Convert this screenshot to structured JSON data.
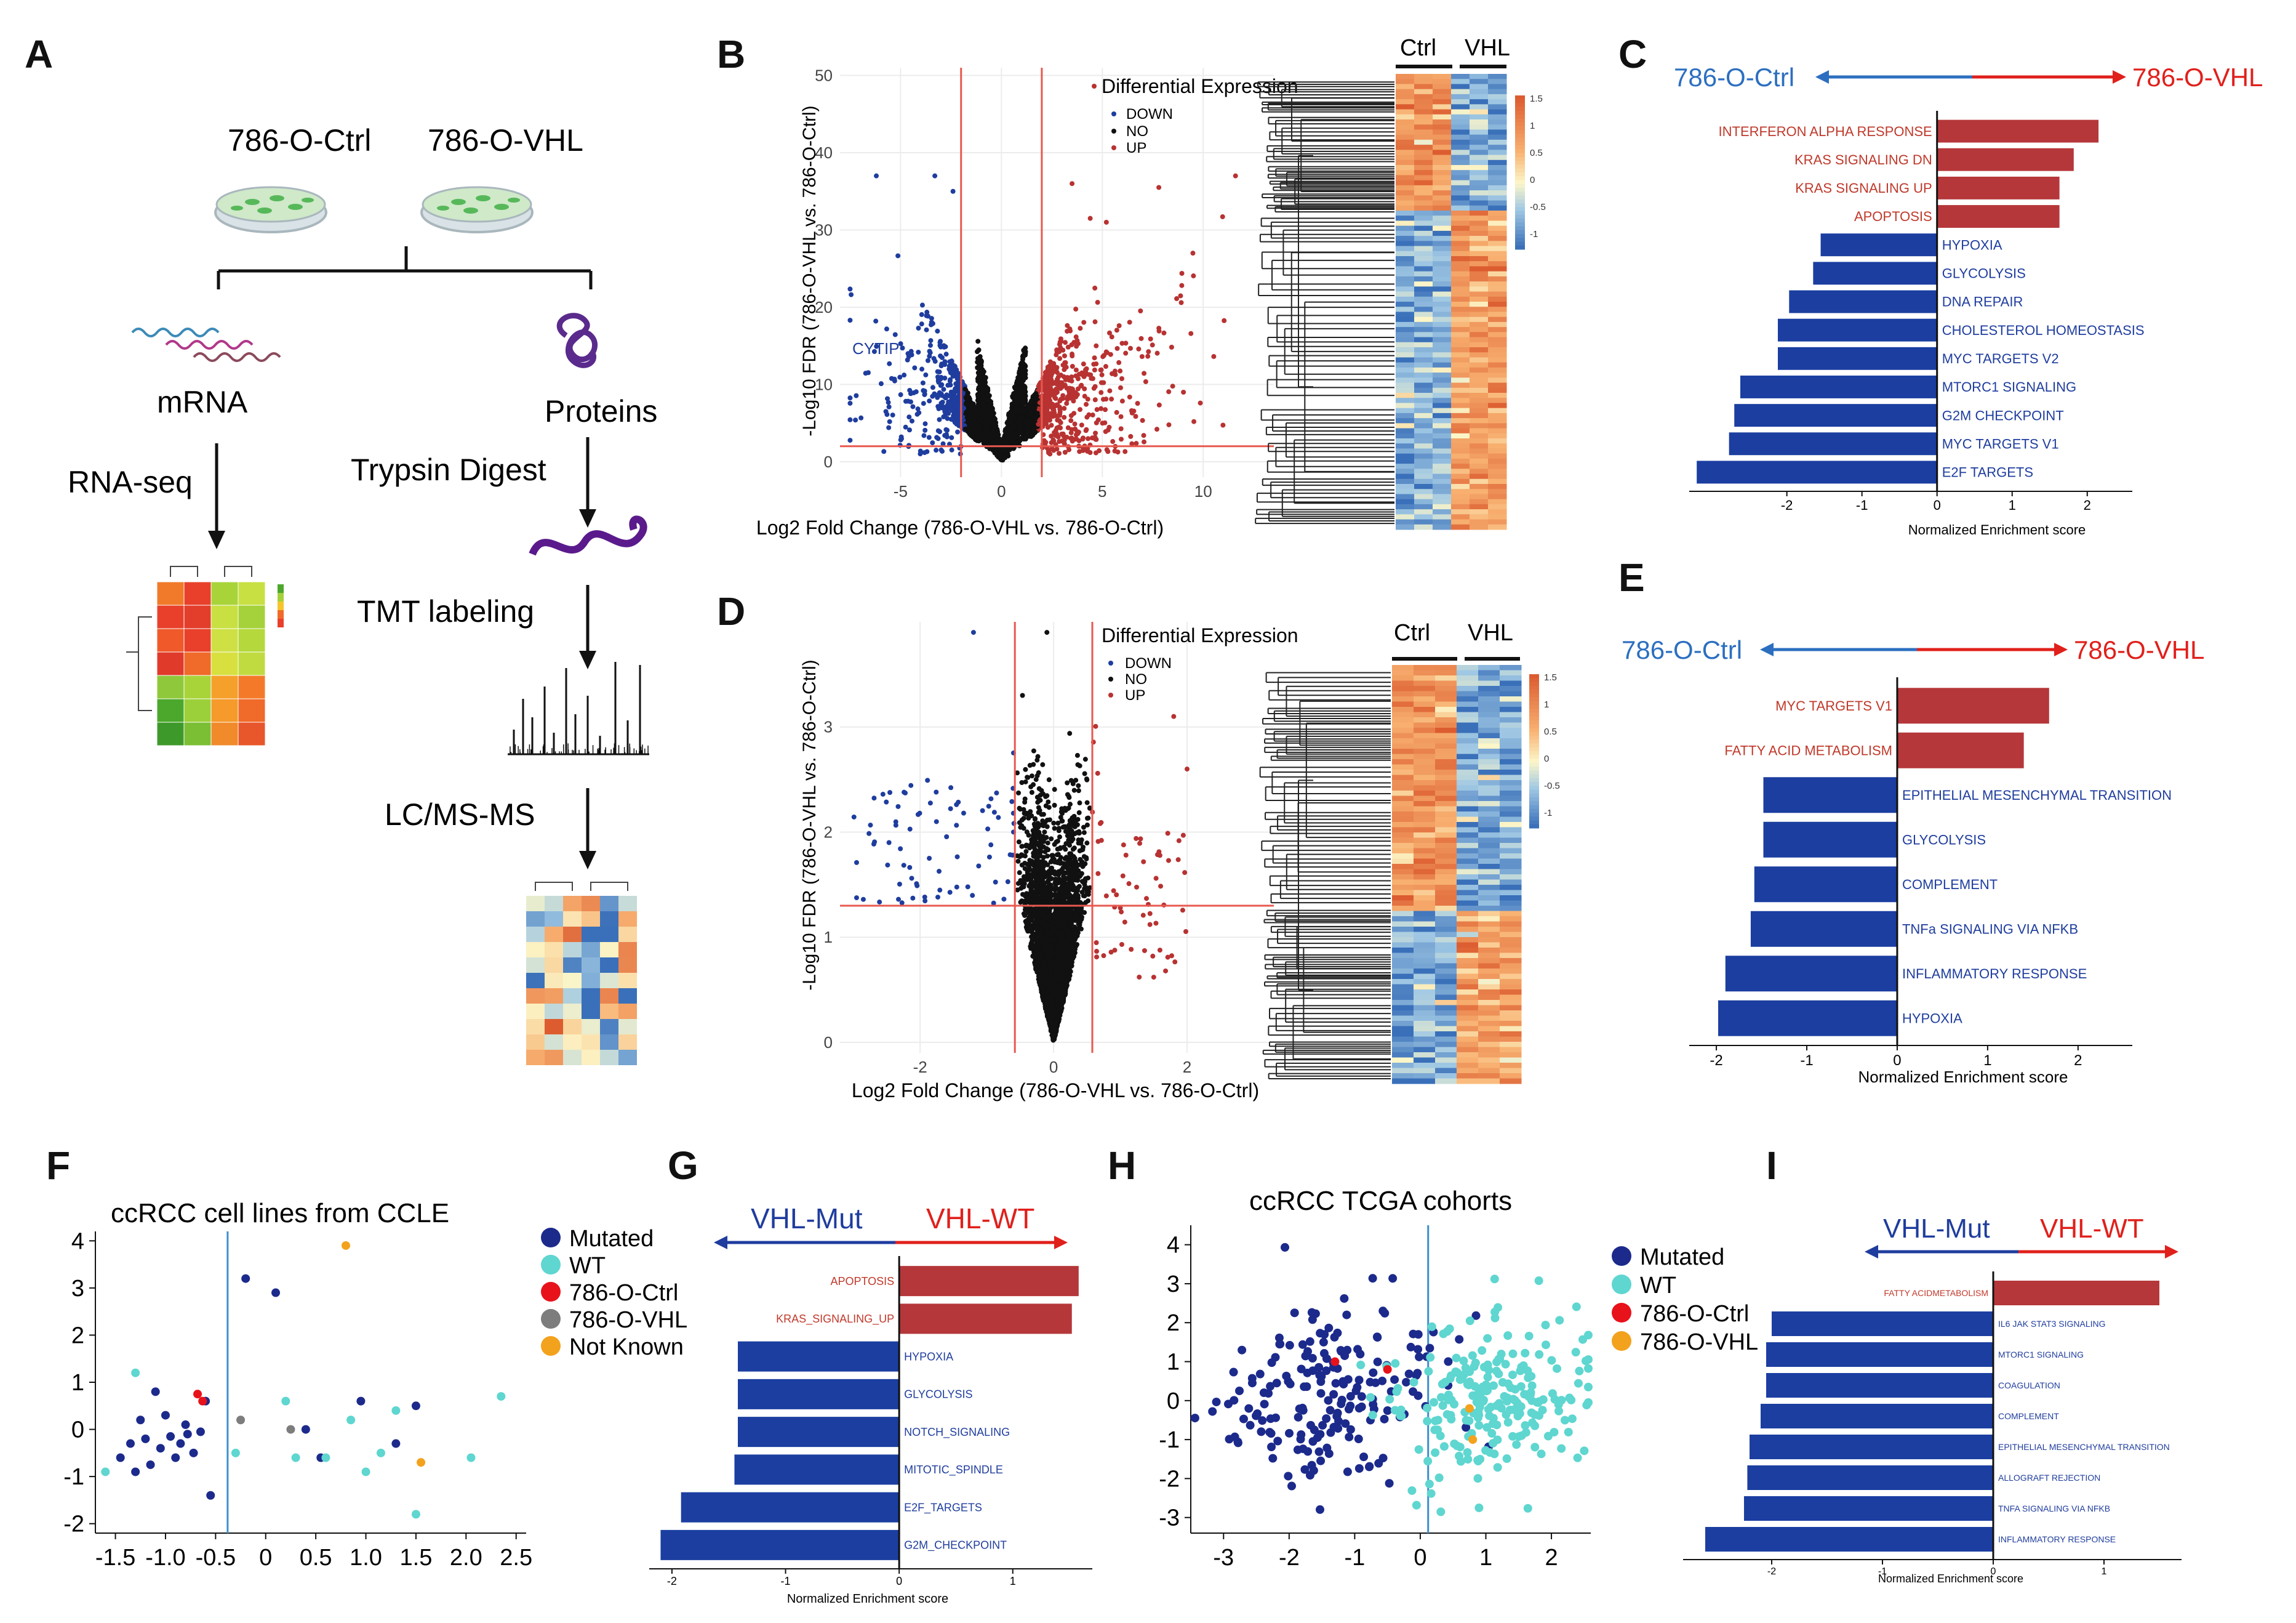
{
  "panels": {
    "A": {
      "letter": "A",
      "ctrl_label": "786-O-Ctrl",
      "vhl_label": "786-O-VHL",
      "mrna_label": "mRNA",
      "proteins_label": "Proteins",
      "rnaseq_label": "RNA-seq",
      "trypsin_label": "Trypsin Digest",
      "tmt_label": "TMT labeling",
      "lcms_label": "LC/MS-MS"
    },
    "B": {
      "letter": "B",
      "xlabel": "Log2 Fold Change (786-O-VHL vs. 786-O-Ctrl)",
      "ylabel": "-Log10 FDR (786-O-VHL vs. 786-O-Ctrl)",
      "legend_title": "Differential Expression",
      "legend": [
        "DOWN",
        "NO",
        "UP"
      ],
      "annotation": "CYTIP",
      "xticks": [
        "-5",
        "0",
        "5",
        "10"
      ],
      "yticks": [
        "0",
        "10",
        "20",
        "30",
        "40",
        "50"
      ],
      "heatmap_cols": [
        "Ctrl",
        "VHL"
      ],
      "scale_ticks": [
        "1.5",
        "1",
        "0.5",
        "0",
        "-0.5",
        "-1"
      ]
    },
    "C": {
      "letter": "C",
      "left_label": "786-O-Ctrl",
      "right_label": "786-O-VHL",
      "xlabel": "Normalized Enrichment score",
      "xticks": [
        "-2",
        "-1",
        "0",
        "1",
        "2"
      ]
    },
    "D": {
      "letter": "D",
      "xlabel": "Log2 Fold Change (786-O-VHL vs. 786-O-Ctrl)",
      "ylabel": "-Log10 FDR (786-O-VHL vs. 786-O-Ctrl)",
      "legend_title": "Differential Expression",
      "legend": [
        "DOWN",
        "NO",
        "UP"
      ],
      "xticks": [
        "-2",
        "0",
        "2"
      ],
      "yticks": [
        "0",
        "1",
        "2",
        "3"
      ],
      "heatmap_cols": [
        "Ctrl",
        "VHL"
      ],
      "scale_ticks": [
        "1.5",
        "1",
        "0.5",
        "0",
        "-0.5",
        "-1"
      ]
    },
    "E": {
      "letter": "E",
      "left_label": "786-O-Ctrl",
      "right_label": "786-O-VHL",
      "xlabel": "Normalized Enrichment score",
      "xticks": [
        "-2",
        "-1",
        "0",
        "1",
        "2"
      ]
    },
    "F": {
      "letter": "F",
      "title": "ccRCC cell lines from CCLE",
      "legend": [
        "Mutated",
        "WT",
        "786-O-Ctrl",
        "786-O-VHL",
        "Not Known"
      ],
      "xticks": [
        "-1.5",
        "-1.0",
        "-0.5",
        "0",
        "0.5",
        "1.0",
        "1.5",
        "2.0",
        "2.5"
      ],
      "yticks": [
        "4",
        "3",
        "2",
        "1",
        "0",
        "-1",
        "-2"
      ]
    },
    "G": {
      "letter": "G",
      "left_label": "VHL-Mut",
      "right_label": "VHL-WT",
      "xlabel": "Normalized Enrichment score",
      "xticks": [
        "-2",
        "-1",
        "0",
        "1"
      ]
    },
    "H": {
      "letter": "H",
      "title": "ccRCC TCGA cohorts",
      "legend": [
        "Mutated",
        "WT",
        "786-O-Ctrl",
        "786-O-VHL"
      ],
      "xticks": [
        "-3",
        "-2",
        "-1",
        "0",
        "1",
        "2"
      ],
      "yticks": [
        "4",
        "3",
        "2",
        "1",
        "0",
        "-1",
        "-2",
        "-3"
      ]
    },
    "I": {
      "letter": "I",
      "left_label": "VHL-Mut",
      "right_label": "VHL-WT",
      "xlabel": "Normalized Enrichment score",
      "xticks": [
        "-2",
        "-1",
        "0",
        "1"
      ]
    }
  },
  "colors": {
    "up": "#b83232",
    "down": "#1f3d9e",
    "no": "#111111",
    "blue_arrow": "#2c6fc0",
    "red_arrow": "#e0201b",
    "mutated": "#1c2a8c",
    "wt": "#5fd6d0",
    "ctrl": "#e8121b",
    "vhl": "#7d7d7d",
    "unknown": "#f3a21d"
  },
  "chart_data": [
    {
      "id": "C",
      "type": "bar",
      "orientation": "horizontal",
      "categories": [
        "INTERFERON ALPHA RESPONSE",
        "KRAS SIGNALING DN",
        "KRAS SIGNALING UP",
        "APOPTOSIS",
        "HYPOXIA",
        "GLYCOLYSIS",
        "DNA REPAIR",
        "CHOLESTEROL HOMEOSTASIS",
        "MYC TARGETS V2",
        "MTORC1 SIGNALING",
        "G2M CHECKPOINT",
        "MYC TARGETS V1",
        "E2F TARGETS"
      ],
      "values": [
        2.15,
        1.82,
        1.63,
        1.63,
        -1.55,
        -1.65,
        -1.97,
        -2.12,
        -2.12,
        -2.62,
        -2.7,
        -2.77,
        -3.2
      ],
      "xlabel": "Normalized Enrichment score",
      "xlim": [
        -3.3,
        2.6
      ]
    },
    {
      "id": "E",
      "type": "bar",
      "orientation": "horizontal",
      "categories": [
        "MYC TARGETS V1",
        "FATTY ACID METABOLISM",
        "EPITHELIAL MESENCHYMAL TRANSITION",
        "GLYCOLYSIS",
        "COMPLEMENT",
        "TNFa SIGNALING VIA NFKB",
        "INFLAMMATORY RESPONSE",
        "HYPOXIA"
      ],
      "values": [
        1.68,
        1.4,
        -1.48,
        -1.48,
        -1.58,
        -1.62,
        -1.9,
        -1.98
      ],
      "xlabel": "Normalized Enrichment score",
      "xlim": [
        -2.3,
        2.6
      ]
    },
    {
      "id": "G",
      "type": "bar",
      "orientation": "horizontal",
      "categories": [
        "APOPTOSIS",
        "KRAS_SIGNALING_UP",
        "HYPOXIA",
        "GLYCOLYSIS",
        "NOTCH_SIGNALING",
        "MITOTIC_SPINDLE",
        "E2F_TARGETS",
        "G2M_CHECKPOINT"
      ],
      "values": [
        1.58,
        1.52,
        -1.42,
        -1.42,
        -1.42,
        -1.45,
        -1.92,
        -2.1
      ],
      "xlabel": "Normalized Enrichment score",
      "xlim": [
        -2.2,
        1.7
      ]
    },
    {
      "id": "I",
      "type": "bar",
      "orientation": "horizontal",
      "categories": [
        "FATTY ACIDMETABOLISM",
        "IL6 JAK STAT3 SIGNALING",
        "MTORC1 SIGNALING",
        "COAGULATION",
        "COMPLEMENT",
        "EPITHELIAL MESENCHYMAL TRANSITION",
        "ALLOGRAFT REJECTION",
        "TNFA SIGNALING VIA NFKB",
        "INFLAMMATORY RESPONSE"
      ],
      "values": [
        1.5,
        -2.0,
        -2.05,
        -2.05,
        -2.1,
        -2.2,
        -2.22,
        -2.25,
        -2.6
      ],
      "xlabel": "Normalized Enrichment score",
      "xlim": [
        -2.8,
        1.7
      ]
    },
    {
      "id": "F",
      "type": "scatter",
      "title": "ccRCC cell lines from CCLE",
      "xlim": [
        -1.7,
        2.6
      ],
      "ylim": [
        -2.2,
        4.2
      ],
      "series": [
        {
          "name": "Mutated",
          "points": [
            [
              -1.45,
              -0.6
            ],
            [
              -1.35,
              -0.3
            ],
            [
              -1.3,
              -0.9
            ],
            [
              -1.25,
              0.2
            ],
            [
              -1.2,
              -0.2
            ],
            [
              -1.15,
              -0.75
            ],
            [
              -1.1,
              0.8
            ],
            [
              -1.05,
              -0.4
            ],
            [
              -1.0,
              0.3
            ],
            [
              -0.95,
              -0.15
            ],
            [
              -0.9,
              -0.6
            ],
            [
              -0.85,
              -0.3
            ],
            [
              -0.8,
              0.1
            ],
            [
              -0.78,
              -0.1
            ],
            [
              -0.72,
              -0.5
            ],
            [
              -0.65,
              -0.05
            ],
            [
              -0.6,
              0.6
            ],
            [
              -0.55,
              -1.4
            ],
            [
              0.1,
              2.9
            ],
            [
              0.4,
              0.0
            ],
            [
              0.55,
              -0.6
            ],
            [
              0.95,
              0.6
            ],
            [
              1.3,
              -0.3
            ],
            [
              1.5,
              0.5
            ],
            [
              -0.2,
              3.2
            ]
          ]
        },
        {
          "name": "WT",
          "points": [
            [
              -1.6,
              -0.9
            ],
            [
              -1.3,
              1.2
            ],
            [
              -0.3,
              -0.5
            ],
            [
              0.2,
              0.6
            ],
            [
              0.3,
              -0.6
            ],
            [
              0.6,
              -0.6
            ],
            [
              0.85,
              0.2
            ],
            [
              1.0,
              -0.9
            ],
            [
              1.15,
              -0.5
            ],
            [
              1.3,
              0.4
            ],
            [
              1.5,
              -1.8
            ],
            [
              2.05,
              -0.6
            ],
            [
              2.35,
              0.7
            ]
          ]
        },
        {
          "name": "786-O-Ctrl",
          "points": [
            [
              -0.68,
              0.75
            ],
            [
              -0.63,
              0.6
            ]
          ]
        },
        {
          "name": "786-O-VHL",
          "points": [
            [
              -0.25,
              0.2
            ],
            [
              0.25,
              0.0
            ]
          ]
        },
        {
          "name": "Not Known",
          "points": [
            [
              0.8,
              3.9
            ],
            [
              1.55,
              -0.7
            ]
          ]
        }
      ]
    },
    {
      "id": "H",
      "type": "scatter",
      "title": "ccRCC TCGA cohorts",
      "xlim": [
        -3.5,
        2.6
      ],
      "ylim": [
        -3.4,
        4.5
      ],
      "series": [
        {
          "name": "Mutated",
          "center": [
            -1.3,
            0.3
          ],
          "spread": [
            0.85,
            1.1
          ]
        },
        {
          "name": "WT",
          "center": [
            1.1,
            0.0
          ],
          "spread": [
            0.75,
            1.0
          ]
        },
        {
          "name": "786-O-Ctrl",
          "points": [
            [
              -1.3,
              1.0
            ],
            [
              -0.5,
              0.8
            ]
          ]
        },
        {
          "name": "786-O-VHL",
          "points": [
            [
              0.75,
              -0.2
            ],
            [
              0.8,
              -1.0
            ]
          ]
        }
      ]
    }
  ]
}
